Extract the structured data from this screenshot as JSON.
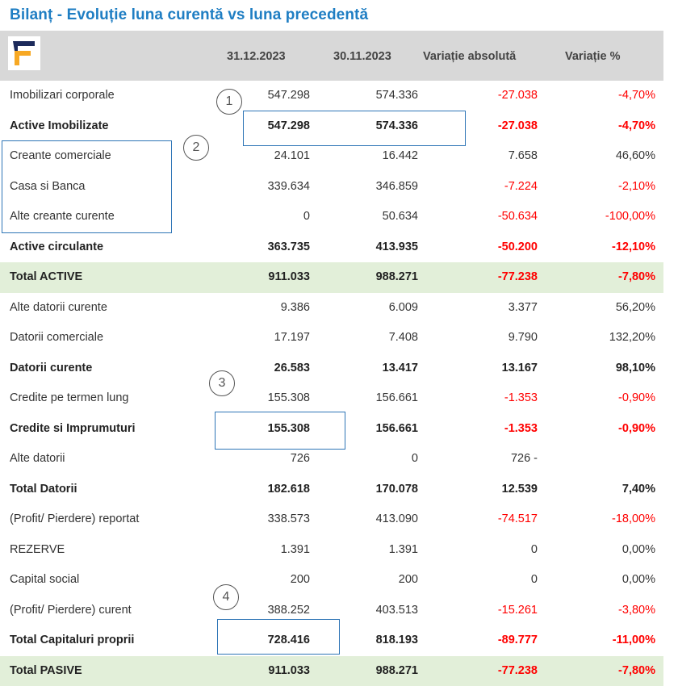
{
  "title": "Bilanț - Evoluție luna curentă vs luna precedentă",
  "columns": {
    "c1": "31.12.2023",
    "c2": "30.11.2023",
    "c3": "Variație absolută",
    "c4": "Variație %"
  },
  "colors": {
    "title": "#1f7ec3",
    "header_bg": "#d8d8d8",
    "total_bg": "#e2efd9",
    "negative": "#ff0000",
    "marker": "#2e75b6"
  },
  "rows": [
    {
      "label": "Imobilizari corporale",
      "v1": "547.298",
      "v2": "574.336",
      "v3": "-27.038",
      "v4": "-4,70%",
      "neg3": true,
      "neg4": true
    },
    {
      "label": "Active Imobilizate",
      "v1": "547.298",
      "v2": "574.336",
      "v3": "-27.038",
      "v4": "-4,70%",
      "neg3": true,
      "neg4": true,
      "bold": true
    },
    {
      "label": "Creante comerciale",
      "v1": "24.101",
      "v2": "16.442",
      "v3": "7.658",
      "v4": "46,60%"
    },
    {
      "label": "Casa si Banca",
      "v1": "339.634",
      "v2": "346.859",
      "v3": "-7.224",
      "v4": "-2,10%",
      "neg3": true,
      "neg4": true
    },
    {
      "label": "Alte creante curente",
      "v1": "0",
      "v2": "50.634",
      "v3": "-50.634",
      "v4": "-100,00%",
      "neg3": true,
      "neg4": true
    },
    {
      "label": "Active circulante",
      "v1": "363.735",
      "v2": "413.935",
      "v3": "-50.200",
      "v4": "-12,10%",
      "neg3": true,
      "neg4": true,
      "bold": true
    },
    {
      "label": "Total ACTIVE",
      "v1": "911.033",
      "v2": "988.271",
      "v3": "-77.238",
      "v4": "-7,80%",
      "neg3": true,
      "neg4": true,
      "bold": true,
      "total": true
    },
    {
      "label": "Alte datorii curente",
      "v1": "9.386",
      "v2": "6.009",
      "v3": "3.377",
      "v4": "56,20%"
    },
    {
      "label": "Datorii comerciale",
      "v1": "17.197",
      "v2": "7.408",
      "v3": "9.790",
      "v4": "132,20%"
    },
    {
      "label": "Datorii curente",
      "v1": "26.583",
      "v2": "13.417",
      "v3": "13.167",
      "v4": "98,10%",
      "bold": true
    },
    {
      "label": "Credite pe termen lung",
      "v1": "155.308",
      "v2": "156.661",
      "v3": "-1.353",
      "v4": "-0,90%",
      "neg3": true,
      "neg4": true
    },
    {
      "label": "Credite si Imprumuturi",
      "v1": "155.308",
      "v2": "156.661",
      "v3": "-1.353",
      "v4": "-0,90%",
      "neg3": true,
      "neg4": true,
      "bold": true
    },
    {
      "label": "Alte datorii",
      "v1": "726",
      "v2": "0",
      "v3": "726 -",
      "v4": ""
    },
    {
      "label": "Total Datorii",
      "v1": "182.618",
      "v2": "170.078",
      "v3": "12.539",
      "v4": "7,40%",
      "bold": true
    },
    {
      "label": "(Profit/ Pierdere) reportat",
      "v1": "338.573",
      "v2": "413.090",
      "v3": "-74.517",
      "v4": "-18,00%",
      "neg3": true,
      "neg4": true
    },
    {
      "label": "REZERVE",
      "v1": "1.391",
      "v2": "1.391",
      "v3": "0",
      "v4": "0,00%"
    },
    {
      "label": "Capital social",
      "v1": "200",
      "v2": "200",
      "v3": "0",
      "v4": "0,00%"
    },
    {
      "label": "(Profit/ Pierdere) curent",
      "v1": "388.252",
      "v2": "403.513",
      "v3": "-15.261",
      "v4": "-3,80%",
      "neg3": true,
      "neg4": true
    },
    {
      "label": "Total Capitaluri proprii",
      "v1": "728.416",
      "v2": "818.193",
      "v3": "-89.777",
      "v4": "-11,00%",
      "neg3": true,
      "neg4": true,
      "bold": true
    },
    {
      "label": "Total PASIVE",
      "v1": "911.033",
      "v2": "988.271",
      "v3": "-77.238",
      "v4": "-7,80%",
      "neg3": true,
      "neg4": true,
      "bold": true,
      "total": true
    }
  ],
  "markers": [
    "1",
    "2",
    "3",
    "4"
  ]
}
